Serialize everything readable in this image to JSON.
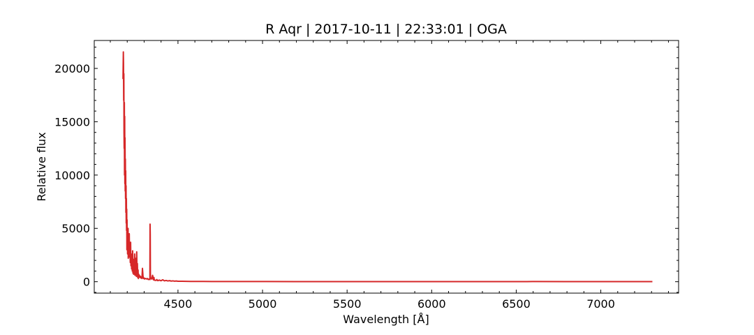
{
  "chart_data": {
    "type": "line",
    "title": "R Aqr | 2017-10-11 | 22:33:01 | OGA",
    "xlabel": "Wavelength [Å]",
    "ylabel": "Relative flux",
    "xlim": [
      4005,
      7460
    ],
    "ylim": [
      -1070,
      22620
    ],
    "grid": false,
    "legend": "none",
    "x_ticks": [
      {
        "value": 4500,
        "label": "4500"
      },
      {
        "value": 5000,
        "label": "5000"
      },
      {
        "value": 5500,
        "label": "5500"
      },
      {
        "value": 6000,
        "label": "6000"
      },
      {
        "value": 6500,
        "label": "6500"
      },
      {
        "value": 7000,
        "label": "7000"
      }
    ],
    "y_ticks": [
      {
        "value": 0,
        "label": "0"
      },
      {
        "value": 5000,
        "label": "5000"
      },
      {
        "value": 10000,
        "label": "10000"
      },
      {
        "value": 15000,
        "label": "15000"
      },
      {
        "value": 20000,
        "label": "20000"
      }
    ],
    "series": [
      {
        "color": "#d62728",
        "x": [
          4175,
          4177,
          4178,
          4179,
          4180,
          4181,
          4182,
          4183,
          4184,
          4185,
          4186,
          4187,
          4188,
          4189,
          4190,
          4191,
          4192,
          4193,
          4194,
          4195,
          4196,
          4197,
          4198,
          4199,
          4200,
          4201,
          4202,
          4203,
          4204,
          4205,
          4206,
          4207,
          4208,
          4209,
          4210,
          4212,
          4214,
          4216,
          4218,
          4220,
          4222,
          4224,
          4226,
          4228,
          4230,
          4232,
          4234,
          4236,
          4238,
          4240,
          4242,
          4244,
          4246,
          4248,
          4250,
          4252,
          4254,
          4256,
          4258,
          4260,
          4262,
          4264,
          4266,
          4268,
          4270,
          4272,
          4275,
          4278,
          4281,
          4284,
          4287,
          4290,
          4293,
          4295,
          4297,
          4300,
          4303,
          4306,
          4310,
          4315,
          4320,
          4325,
          4330,
          4334,
          4335,
          4336,
          4337,
          4338,
          4340,
          4345,
          4350,
          4355,
          4358,
          4360,
          4365,
          4370,
          4375,
          4380,
          4390,
          4400,
          4410,
          4420,
          4430,
          4440,
          4450,
          4460,
          4470,
          4480,
          4490,
          4500,
          4525,
          4550,
          4575,
          4600,
          4650,
          4700,
          4800,
          4900,
          5000,
          5200,
          5400,
          5600,
          5800,
          6000,
          6200,
          6400,
          6562,
          6600,
          6800,
          7000,
          7200,
          7305
        ],
        "y": [
          19000,
          21550,
          20500,
          17000,
          19500,
          14000,
          12500,
          16800,
          10000,
          15500,
          9200,
          13500,
          8500,
          11500,
          7800,
          10400,
          6500,
          9000,
          5500,
          7800,
          4800,
          6800,
          3000,
          5800,
          3500,
          4800,
          2600,
          4200,
          2800,
          5000,
          2200,
          4000,
          2600,
          3200,
          2500,
          4500,
          2300,
          3500,
          1800,
          3700,
          1500,
          2600,
          1200,
          2300,
          1000,
          2900,
          800,
          2100,
          700,
          1600,
          1100,
          2600,
          600,
          1800,
          900,
          2200,
          500,
          2800,
          600,
          1700,
          400,
          1100,
          300,
          700,
          500,
          600,
          400,
          500,
          350,
          450,
          300,
          1250,
          600,
          350,
          300,
          350,
          250,
          300,
          300,
          250,
          300,
          200,
          250,
          200,
          5400,
          4500,
          800,
          300,
          350,
          250,
          600,
          180,
          400,
          150,
          130,
          120,
          200,
          100,
          150,
          90,
          180,
          80,
          120,
          70,
          100,
          60,
          80,
          50,
          70,
          45,
          40,
          35,
          30,
          25,
          22,
          20,
          18,
          15,
          15,
          14,
          13,
          12,
          12,
          12,
          12,
          12,
          11,
          15,
          11,
          10,
          10,
          10
        ]
      }
    ]
  }
}
